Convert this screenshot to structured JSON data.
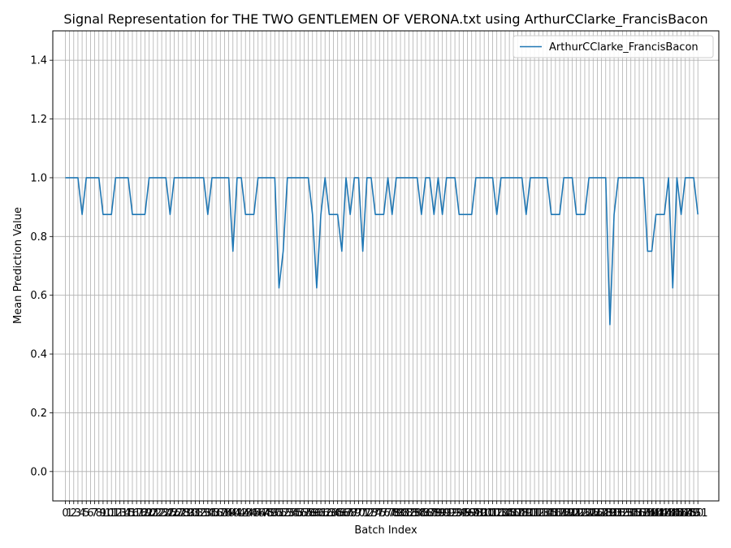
{
  "chart_data": {
    "type": "line",
    "title": "Signal Representation for THE TWO GENTLEMEN OF VERONA.txt using ArthurCClarke_FrancisBacon",
    "xlabel": "Batch Index",
    "ylabel": "Mean Prediction Value",
    "ylim": [
      -0.1,
      1.5
    ],
    "xlim": [
      -3,
      156
    ],
    "grid": true,
    "legend_position": "top-right",
    "yticks": [
      0.0,
      0.2,
      0.4,
      0.6,
      0.8,
      1.0,
      1.2,
      1.4
    ],
    "ytick_labels": [
      "0.0",
      "0.2",
      "0.4",
      "0.6",
      "0.8",
      "1.0",
      "1.2",
      "1.4"
    ],
    "series": [
      {
        "name": "ArthurCClarke_FrancisBacon",
        "color": "#1f77b4",
        "x_start": 0,
        "values": [
          1.0,
          1.0,
          1.0,
          1.0,
          0.875,
          1.0,
          1.0,
          1.0,
          1.0,
          0.875,
          0.875,
          0.875,
          1.0,
          1.0,
          1.0,
          1.0,
          0.875,
          0.875,
          0.875,
          0.875,
          1.0,
          1.0,
          1.0,
          1.0,
          1.0,
          0.875,
          1.0,
          1.0,
          1.0,
          1.0,
          1.0,
          1.0,
          1.0,
          1.0,
          0.875,
          1.0,
          1.0,
          1.0,
          1.0,
          1.0,
          0.75,
          1.0,
          1.0,
          0.875,
          0.875,
          0.875,
          1.0,
          1.0,
          1.0,
          1.0,
          1.0,
          0.625,
          0.75,
          1.0,
          1.0,
          1.0,
          1.0,
          1.0,
          1.0,
          0.875,
          0.625,
          0.875,
          1.0,
          0.875,
          0.875,
          0.875,
          0.75,
          1.0,
          0.875,
          1.0,
          1.0,
          0.75,
          1.0,
          1.0,
          0.875,
          0.875,
          0.875,
          1.0,
          0.875,
          1.0,
          1.0,
          1.0,
          1.0,
          1.0,
          1.0,
          0.875,
          1.0,
          1.0,
          0.875,
          1.0,
          0.875,
          1.0,
          1.0,
          1.0,
          0.875,
          0.875,
          0.875,
          0.875,
          1.0,
          1.0,
          1.0,
          1.0,
          1.0,
          0.875,
          1.0,
          1.0,
          1.0,
          1.0,
          1.0,
          1.0,
          0.875,
          1.0,
          1.0,
          1.0,
          1.0,
          1.0,
          0.875,
          0.875,
          0.875,
          1.0,
          1.0,
          1.0,
          0.875,
          0.875,
          0.875,
          1.0,
          1.0,
          1.0,
          1.0,
          1.0,
          0.5,
          0.875,
          1.0,
          1.0,
          1.0,
          1.0,
          1.0,
          1.0,
          1.0,
          0.75,
          0.75,
          0.875,
          0.875,
          0.875,
          1.0,
          0.625,
          1.0,
          0.875,
          1.0,
          1.0,
          1.0,
          0.875
        ]
      }
    ]
  }
}
